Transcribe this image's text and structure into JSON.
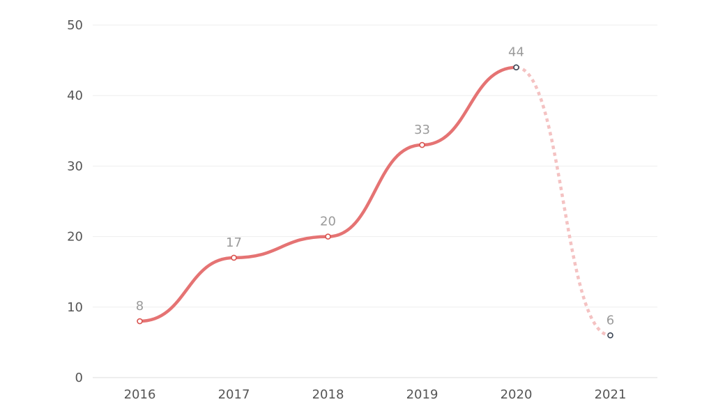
{
  "chart_data": {
    "type": "line",
    "categories": [
      "2016",
      "2017",
      "2018",
      "2019",
      "2020",
      "2021"
    ],
    "series": [
      {
        "values": [
          8,
          17,
          20,
          33,
          44,
          6
        ],
        "projected_from_index": 4,
        "color": "#e57373",
        "projected_color": "#f4c2c2",
        "point_stroke": "#d9534f",
        "highlight_point_stroke": "#3a4454"
      }
    ],
    "data_labels": [
      "8",
      "17",
      "20",
      "33",
      "44",
      "6"
    ],
    "y_ticks": [
      "0",
      "10",
      "20",
      "30",
      "40",
      "50"
    ],
    "ylim": [
      0,
      50
    ],
    "grid": true,
    "grid_color": "#eeeeee",
    "axis_color": "#dddddd",
    "line_style": "smooth",
    "title": "",
    "xlabel": "",
    "ylabel": ""
  }
}
